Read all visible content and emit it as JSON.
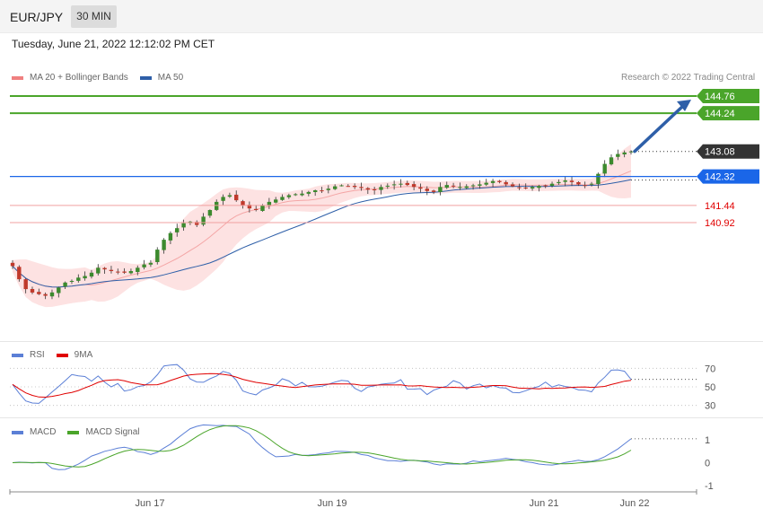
{
  "header": {
    "symbol": "EUR/JPY",
    "timeframe": "30 MIN"
  },
  "datetime": "Tuesday, June 21, 2022 12:12:02 PM CET",
  "credit": "Research © 2022 Trading Central",
  "colors": {
    "bb": "#f08080",
    "ma50": "#2e5fa8",
    "rsi": "#5b7fd6",
    "rsi9": "#e00000",
    "macd": "#5b7fd6",
    "macdsig": "#4aa52a",
    "green": "#4aa52a",
    "blue": "#1a66e8",
    "dark": "#333333",
    "red": "#e00000"
  },
  "legends": {
    "price": [
      {
        "label": "MA 20 + Bollinger Bands",
        "color": "#f08080"
      },
      {
        "label": "MA 50",
        "color": "#2e5fa8"
      }
    ],
    "rsi": [
      {
        "label": "RSI",
        "color": "#5b7fd6"
      },
      {
        "label": "9MA",
        "color": "#e00000"
      }
    ],
    "macd": [
      {
        "label": "MACD",
        "color": "#5b7fd6"
      },
      {
        "label": "MACD Signal",
        "color": "#4aa52a"
      }
    ]
  },
  "chart_data": [
    {
      "type": "candlestick",
      "xticks": [
        "Jun 17",
        "Jun 19",
        "Jun 21",
        "Jun 22"
      ],
      "last_price": 143.08,
      "levels": [
        {
          "value": 144.76,
          "label": "144.76",
          "style": "resistance-green"
        },
        {
          "value": 144.24,
          "label": "144.24",
          "style": "resistance-green"
        },
        {
          "value": 143.08,
          "label": "143.08",
          "style": "current"
        },
        {
          "value": 142.32,
          "label": "142.32",
          "style": "pivot-blue"
        },
        {
          "value": 141.44,
          "label": "141.44",
          "style": "support-red"
        },
        {
          "value": 140.92,
          "label": "140.92",
          "style": "support-red"
        }
      ],
      "projection": {
        "from": 143.08,
        "to": 144.76
      },
      "close_series": [
        139.6,
        139.2,
        138.9,
        138.8,
        138.75,
        138.7,
        138.8,
        138.95,
        139.1,
        139.15,
        139.25,
        139.3,
        139.4,
        139.55,
        139.5,
        139.45,
        139.42,
        139.4,
        139.45,
        139.55,
        139.65,
        139.7,
        140.1,
        140.4,
        140.6,
        140.75,
        140.9,
        140.95,
        140.85,
        141.1,
        141.3,
        141.55,
        141.7,
        141.75,
        141.6,
        141.45,
        141.35,
        141.3,
        141.45,
        141.55,
        141.62,
        141.7,
        141.75,
        141.78,
        141.8,
        141.85,
        141.9,
        141.88,
        141.95,
        142.02,
        142.05,
        142.03,
        142.0,
        141.97,
        141.92,
        141.9,
        142.0,
        142.04,
        142.08,
        142.1,
        142.06,
        142.0,
        141.95,
        141.88,
        141.85,
        142.0,
        142.06,
        142.02,
        142.0,
        142.02,
        142.05,
        142.08,
        142.13,
        142.18,
        142.15,
        142.08,
        142.02,
        141.98,
        141.96,
        142.0,
        142.03,
        142.05,
        142.1,
        142.15,
        142.2,
        142.15,
        142.08,
        142.05,
        142.1,
        142.4,
        142.7,
        142.9,
        143.0,
        143.05,
        143.08
      ]
    },
    {
      "type": "line",
      "name": "RSI",
      "ylim": [
        20,
        80
      ],
      "yticks": [
        70,
        50,
        30
      ],
      "series": [
        {
          "name": "RSI"
        },
        {
          "name": "9MA"
        }
      ]
    },
    {
      "type": "line",
      "name": "MACD",
      "ylim": [
        -1.2,
        1.4
      ],
      "yticks": [
        1,
        0,
        -1
      ],
      "series": [
        {
          "name": "MACD"
        },
        {
          "name": "MACD Signal"
        }
      ]
    }
  ]
}
